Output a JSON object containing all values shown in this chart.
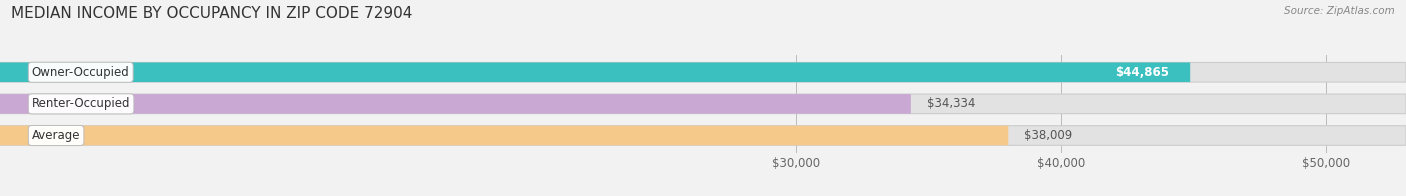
{
  "title": "MEDIAN INCOME BY OCCUPANCY IN ZIP CODE 72904",
  "source": "Source: ZipAtlas.com",
  "categories": [
    "Owner-Occupied",
    "Renter-Occupied",
    "Average"
  ],
  "values": [
    44865,
    34334,
    38009
  ],
  "bar_colors": [
    "#3bbfbf",
    "#c9a8d4",
    "#f5c98a"
  ],
  "bar_labels": [
    "$44,865",
    "$34,334",
    "$38,009"
  ],
  "label_inside": [
    true,
    false,
    false
  ],
  "xlim_min": 0,
  "xlim_max": 53000,
  "xticks": [
    30000,
    40000,
    50000
  ],
  "xtick_labels": [
    "$30,000",
    "$40,000",
    "$50,000"
  ],
  "background_color": "#f2f2f2",
  "bar_background_color": "#e2e2e2",
  "bar_height": 0.62,
  "bar_gap": 0.1,
  "title_fontsize": 11,
  "label_fontsize": 8.5,
  "tick_fontsize": 8.5,
  "source_fontsize": 7.5
}
